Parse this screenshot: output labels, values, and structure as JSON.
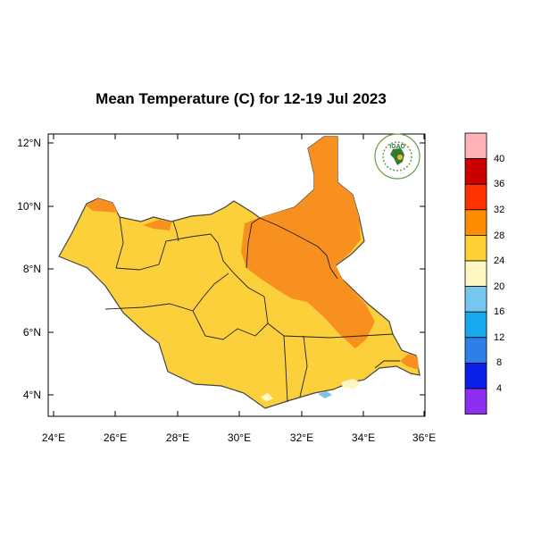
{
  "title": "Mean Temperature (C) for 12-19 Jul 2023",
  "logo": {
    "text": "IGAD",
    "icon": "igad-logo-icon"
  },
  "map": {
    "lat_ticks": [
      "12°N",
      "10°N",
      "8°N",
      "6°N",
      "4°N"
    ],
    "lon_ticks": [
      "24°E",
      "26°E",
      "28°E",
      "30°E",
      "32°E",
      "34°E",
      "36°E"
    ],
    "lon_range": [
      24,
      36
    ],
    "lat_range": [
      3.3,
      12.3
    ]
  },
  "colorbar": {
    "labels": [
      "40",
      "36",
      "32",
      "28",
      "24",
      "20",
      "16",
      "12",
      "8",
      "4"
    ],
    "colors": [
      "#ffb3b8",
      "#cc0000",
      "#ff3300",
      "#ff8c00",
      "#ffd033",
      "#fff8c2",
      "#77c6ef",
      "#18a8f0",
      "#2e7fe8",
      "#0a1fe8",
      "#8c2ff0"
    ]
  },
  "colors": {
    "warm_28": "#fbd03a",
    "hot_32": "#f7901e",
    "mild_24": "#fff6c8",
    "cool_20": "#7fc3ea",
    "border": "#222222"
  }
}
